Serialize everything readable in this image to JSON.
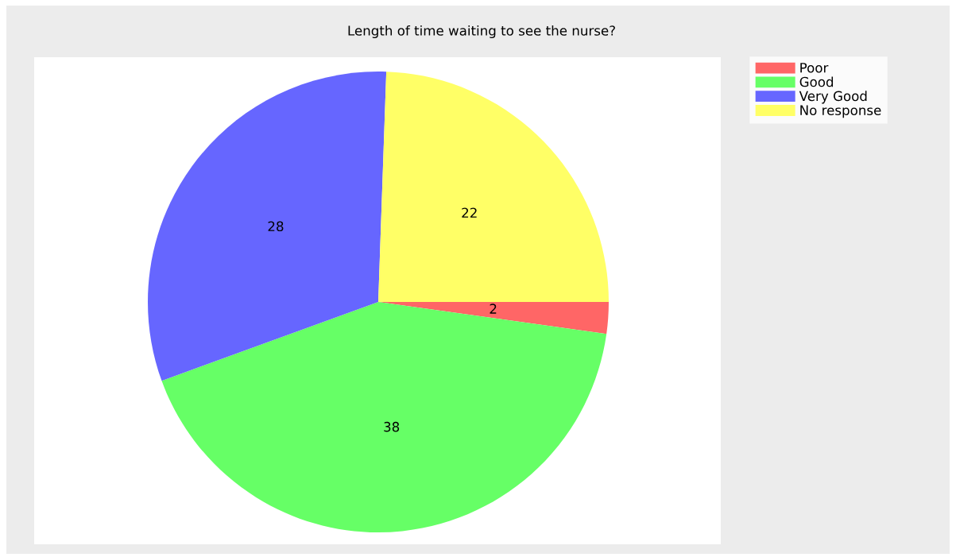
{
  "chart_data": {
    "type": "pie",
    "title": "Length of time waiting to see the nurse?",
    "categories": [
      "Poor",
      "Good",
      "Very Good",
      "No response"
    ],
    "values": [
      2,
      38,
      28,
      22
    ],
    "colors": [
      "#ff6666",
      "#66ff66",
      "#6666ff",
      "#ffff66"
    ],
    "data_labels": true,
    "legend": "right"
  }
}
